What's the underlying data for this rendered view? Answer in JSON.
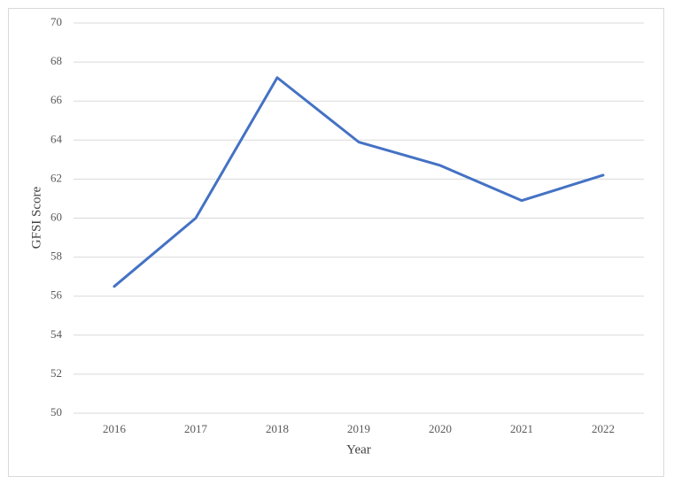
{
  "chart_data": {
    "type": "line",
    "x_label": "Year",
    "y_label": "GFSI Score",
    "categories": [
      "2016",
      "2017",
      "2018",
      "2019",
      "2020",
      "2021",
      "2022"
    ],
    "series": [
      {
        "name": "GFSI Score",
        "color": "#4472c4",
        "values": [
          56.5,
          60.0,
          67.2,
          63.9,
          62.7,
          60.9,
          62.2
        ]
      }
    ],
    "ylim": [
      50,
      70
    ],
    "yticks": [
      50,
      52,
      54,
      56,
      58,
      60,
      62,
      64,
      66,
      68,
      70
    ],
    "grid": true
  }
}
